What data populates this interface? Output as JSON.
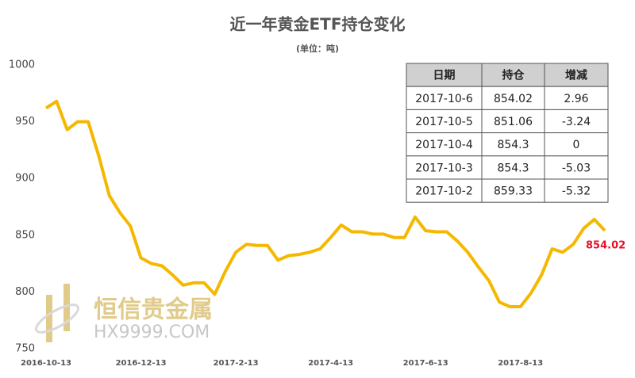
{
  "chart_data": {
    "type": "line",
    "title": "近一年黄金ETF持仓变化",
    "subtitle": "(单位：吨)",
    "categories": [
      "2016-10-13",
      null,
      null,
      null,
      null,
      null,
      null,
      null,
      null,
      "2016-12-13",
      null,
      null,
      null,
      null,
      null,
      null,
      null,
      null,
      "2017-2-13",
      null,
      null,
      null,
      null,
      null,
      null,
      null,
      null,
      "2017-4-13",
      null,
      null,
      null,
      null,
      null,
      null,
      null,
      null,
      "2017-6-13",
      null,
      null,
      null,
      null,
      null,
      null,
      null,
      null,
      "2017-8-13",
      null,
      null,
      null,
      null,
      null,
      null,
      null,
      null
    ],
    "values": [
      962,
      968,
      943,
      950,
      950,
      920,
      885,
      870,
      858,
      830,
      825,
      823,
      815,
      806,
      808,
      808,
      798,
      818,
      835,
      842,
      841,
      841,
      828,
      832,
      833,
      835,
      838,
      848,
      859,
      853,
      853,
      851,
      851,
      848,
      848,
      866,
      854,
      853,
      853,
      845,
      835,
      822,
      810,
      791,
      787,
      787,
      799,
      815,
      838,
      835,
      842,
      856,
      864,
      854.02
    ],
    "color": "#f5b800",
    "ylim": [
      750,
      1000
    ],
    "yticks": [
      750,
      800,
      850,
      900,
      950,
      1000
    ],
    "grid": false,
    "table": {
      "header": [
        "日期",
        "持仓",
        "增减"
      ],
      "rows": [
        [
          "2017-10-6",
          854.02,
          2.96
        ],
        [
          "2017-10-5",
          851.06,
          -3.24
        ],
        [
          "2017-10-4",
          854.3,
          0
        ],
        [
          "2017-10-3",
          854.3,
          -5.03
        ],
        [
          "2017-10-2",
          859.33,
          -5.32
        ]
      ]
    },
    "watermark": {
      "name": "恒信贵金属",
      "site": "HX9999.COM"
    }
  }
}
